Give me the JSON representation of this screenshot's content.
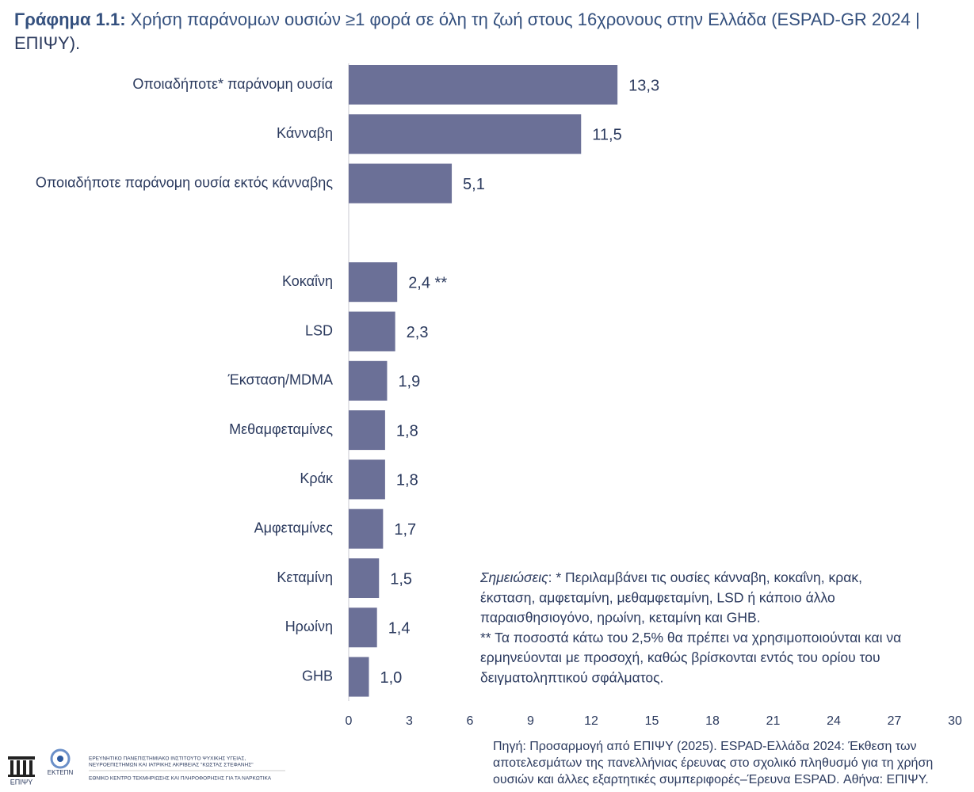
{
  "chart_data": {
    "type": "hbar",
    "title_label": "Γράφημα 1.1:",
    "title": [
      " Χρήση παράνομων ουσιών ≥1 φορά σε όλη τη ζωή στους 16χρονους στην Ελλάδα (ESPAD-GR 2024 |",
      "ΕΠΙΨΥ)."
    ],
    "categories": [
      "Οποιαδήποτε* παράνομη ουσία",
      "Κάνναβη",
      "Οποιαδήποτε παράνομη ουσία εκτός κάνναβης",
      null,
      "Κοκαΐνη",
      "LSD",
      "Έκσταση/MDMA",
      "Μεθαμφεταμίνες",
      "Κράκ",
      "Αμφεταμίνες",
      "Κεταμίνη",
      "Ηρωίνη",
      "GHB"
    ],
    "values": [
      13.3,
      11.5,
      5.1,
      null,
      2.4,
      2.3,
      1.9,
      1.8,
      1.8,
      1.7,
      1.5,
      1.4,
      1.0
    ],
    "value_labels": [
      "13,3",
      "11,5",
      "5,1",
      null,
      "2,4 **",
      "2,3",
      "1,9",
      "1,8",
      "1,8",
      "1,7",
      "1,5",
      "1,4",
      "1,0"
    ],
    "color": "#6b7097",
    "xlim": [
      0,
      30
    ],
    "xticks": [
      0,
      3,
      6,
      9,
      12,
      15,
      18,
      21,
      24,
      27,
      30
    ],
    "grid": false,
    "notes_label": "Σημειώσεις",
    "notes": [
      ": * Περιλαμβάνει τις ουσίες κάνναβη, κοκαΐνη, κρακ,",
      "έκσταση, αμφεταμίνη, μεθαμφεταμίνη, LSD ή κάποιο άλλο",
      "παραισθησιογόνο, ηρωίνη, κεταμίνη και GHB.",
      "** Τα ποσοστά κάτω του 2,5% θα πρέπει να χρησιμοποιούνται και να",
      "ερμηνεύονται με προσοχή, καθώς βρίσκονται εντός του ορίου του",
      "δειγματοληπτικού σφάλματος."
    ],
    "source": [
      "Πηγή: Προσαρμογή από ΕΠΙΨΥ (2025). ESPAD-Ελλάδα 2024: Έκθεση των",
      "αποτελεσμάτων της πανελλήνιας έρευνας στο σχολικό πληθυσμό για τη χρήση",
      "ουσιών και άλλες εξαρτητικές συμπεριφορές–Έρευνα ESPAD. Αθήνα: ΕΠΙΨΥ."
    ]
  },
  "footer": {
    "logo1": "ΕΠΙΨΥ",
    "logo2": "ΕΚΤΕΠΝ",
    "institute": [
      "ΕΡΕΥΝΗΤΙΚΟ ΠΑΝΕΠΙΣΤΗΜΙΑΚΟ ΙΝΣΤΙΤΟΥΤΟ ΨΥΧΙΚΗΣ ΥΓΕΙΑΣ,",
      "ΝΕΥΡΟΕΠΙΣΤΗΜΩΝ ΚΑΙ ΙΑΤΡΙΚΗΣ ΑΚΡΙΒΕΙΑΣ \"ΚΩΣΤΑΣ ΣΤΕΦΑΝΗΣ\""
    ],
    "center": "ΕΘΝΙΚΟ ΚΕΝΤΡΟ ΤΕΚΜΗΡΙΩΣΗΣ ΚΑΙ ΠΛΗΡΟΦΟΡΗΣΗΣ ΓΙΑ ΤΑ ΝΑΡΚΩΤΙΚΑ"
  }
}
